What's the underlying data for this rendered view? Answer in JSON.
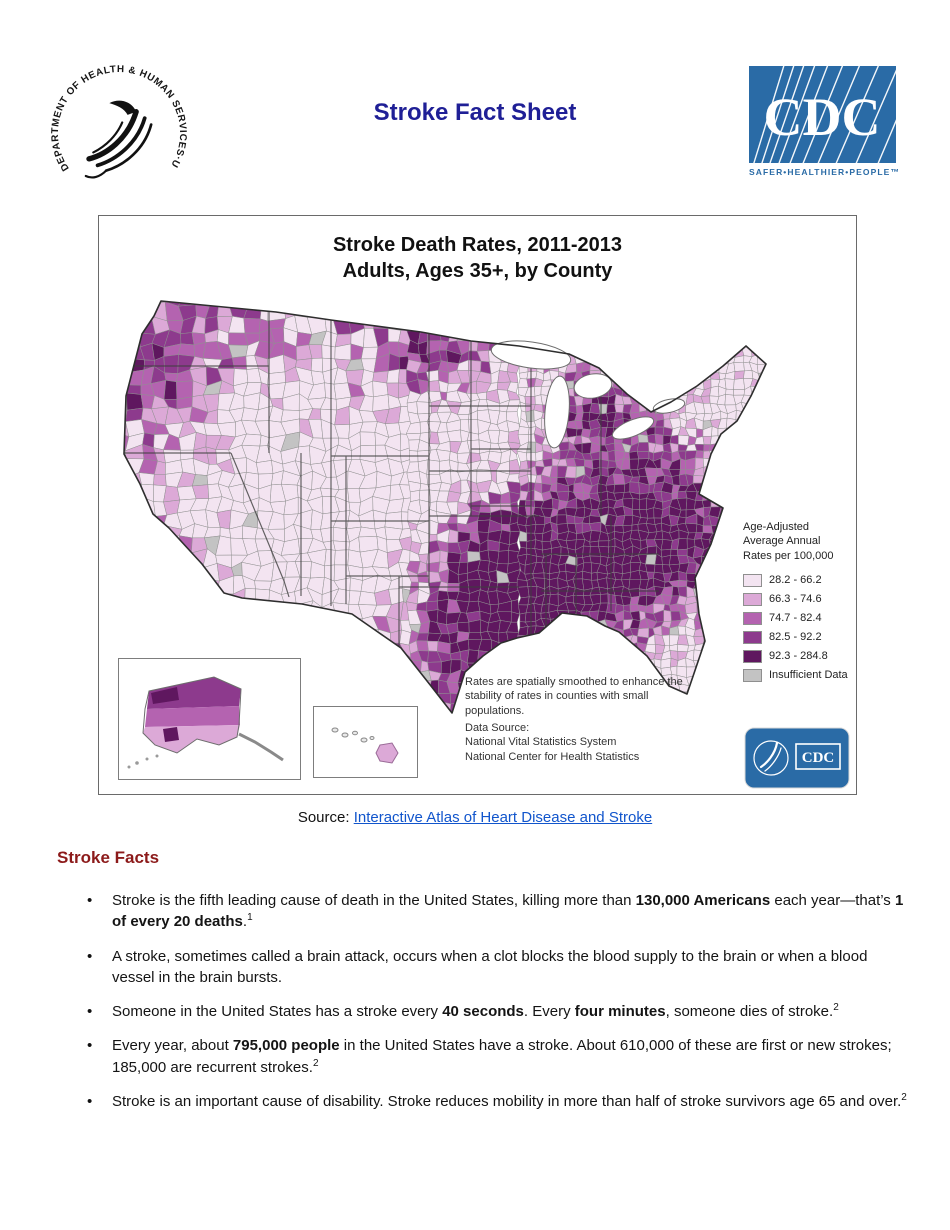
{
  "page_title": "Stroke Fact Sheet",
  "header": {
    "hhs_seal_text": "DEPARTMENT OF HEALTH & HUMAN SERVICES·USA",
    "cdc_logo": "CDC",
    "cdc_tagline": "SAFER•HEALTHIER•PEOPLE™"
  },
  "chart_data": {
    "type": "choropleth",
    "title": "Stroke Death Rates, 2011-2013",
    "subtitle": "Adults, Ages 35+, by County",
    "geography": "United States counties, contiguous US with Alaska and Hawaii insets",
    "legend_title_lines": [
      "Age-Adjusted",
      "Average Annual",
      "Rates per 100,000"
    ],
    "classes": [
      {
        "label": "28.2 - 66.2",
        "color": "#f3e4f1"
      },
      {
        "label": "66.3 - 74.6",
        "color": "#dca9d7"
      },
      {
        "label": "74.7 - 82.4",
        "color": "#b463b0"
      },
      {
        "label": "82.5 - 92.2",
        "color": "#8d3a8d"
      },
      {
        "label": "92.3 - 284.8",
        "color": "#5f175f"
      },
      {
        "label": "Insufficient Data",
        "color": "#c3c3c3"
      }
    ],
    "notes": "Rates are spatially smoothed to enhance the stability of rates in counties with small populations.",
    "data_source_lines": [
      "Data Source:",
      "National Vital Statistics System",
      "National Center for Health Statistics"
    ],
    "pattern": "Highest county death rates cluster in the southeastern stroke belt (Oklahoma and Arkansas through Mississippi, Alabama, Tennessee, Georgia and the Carolinas) with pockets in the Pacific Northwest and northern plains; lowest rates appear in the Mountain West, Southwest, upper Midwest, Northeast and peninsular Florida; Alaska mostly medium-to-high, Hawaii low."
  },
  "source_line": {
    "prefix": "Source: ",
    "link_text": "Interactive Atlas of Heart Disease and Stroke"
  },
  "facts": {
    "heading": "Stroke Facts",
    "bullets": [
      [
        {
          "t": "Stroke is the fifth leading cause of death in the United States, killing more than "
        },
        {
          "t": "130,000 Americans",
          "b": true
        },
        {
          "t": " each year—that’s "
        },
        {
          "t": "1 of every 20 deaths",
          "b": true
        },
        {
          "t": "."
        },
        {
          "t": "1",
          "sup": true
        }
      ],
      [
        {
          "t": "A stroke, sometimes called a brain attack, occurs when a clot blocks the blood supply to the brain or when a blood vessel in the brain bursts."
        }
      ],
      [
        {
          "t": "Someone in the United States has a stroke every "
        },
        {
          "t": "40 seconds",
          "b": true
        },
        {
          "t": ". Every "
        },
        {
          "t": "four minutes",
          "b": true
        },
        {
          "t": ", someone dies of stroke."
        },
        {
          "t": "2",
          "sup": true
        }
      ],
      [
        {
          "t": "Every year, about "
        },
        {
          "t": "795,000 people",
          "b": true
        },
        {
          "t": " in the United States have a stroke. About 610,000 of these are first or new strokes; 185,000 are recurrent strokes."
        },
        {
          "t": "2",
          "sup": true
        }
      ],
      [
        {
          "t": "Stroke is an important cause of disability. Stroke reduces mobility in more than half of stroke survivors age 65 and over."
        },
        {
          "t": "2",
          "sup": true
        }
      ]
    ]
  },
  "colors": {
    "title_blue": "#1f1f96",
    "heading_red": "#8c1a1a",
    "link_blue": "#1155cc",
    "cdc_blue": "#2a6ba6",
    "map_county_border": "#909090",
    "map_state_border": "#3f3f3f"
  }
}
